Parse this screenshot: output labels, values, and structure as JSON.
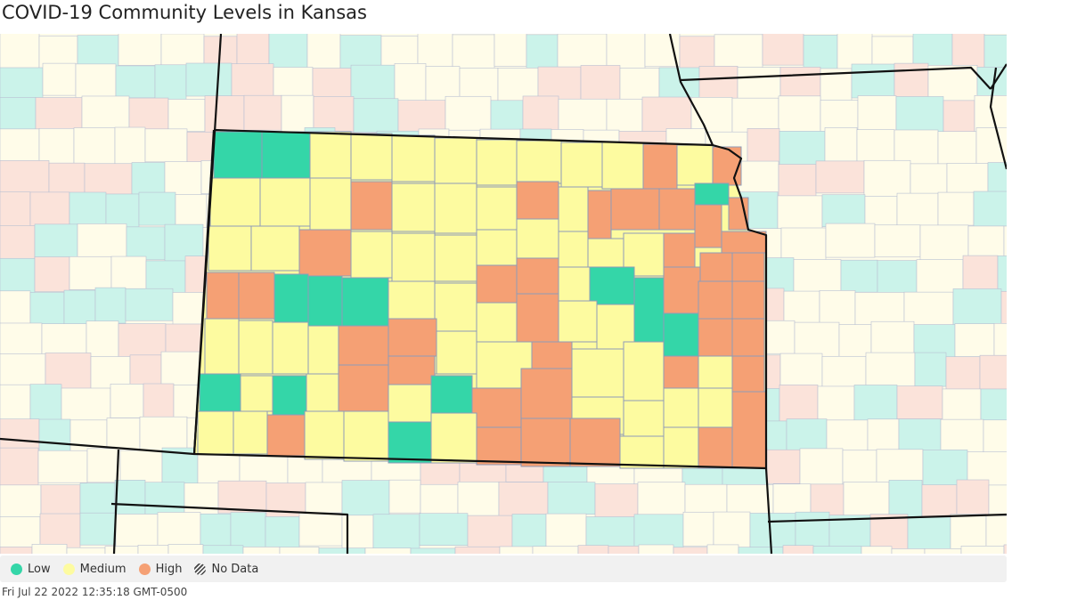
{
  "title": "COVID-19 Community Levels in Kansas",
  "legend": [
    {
      "label": "Low",
      "color": "#34d6a8",
      "pattern": "solid"
    },
    {
      "label": "Medium",
      "color": "#fdfba0",
      "pattern": "solid"
    },
    {
      "label": "High",
      "color": "#f5a074",
      "pattern": "solid"
    },
    {
      "label": "No Data",
      "color": "#444444",
      "pattern": "hatch"
    }
  ],
  "timestamp": "Fri Jul 22 2022 12:35:18 GMT-0500",
  "map": {
    "state": "Kansas",
    "colors": {
      "low": "#34d6a8",
      "medium": "#fdfba0",
      "high": "#f5a074",
      "low_faded": "#cbf3ea",
      "medium_faded": "#fffce9",
      "high_faded": "#fbe3da",
      "county_border": "#8f9bb8",
      "state_border": "#111111"
    }
  }
}
